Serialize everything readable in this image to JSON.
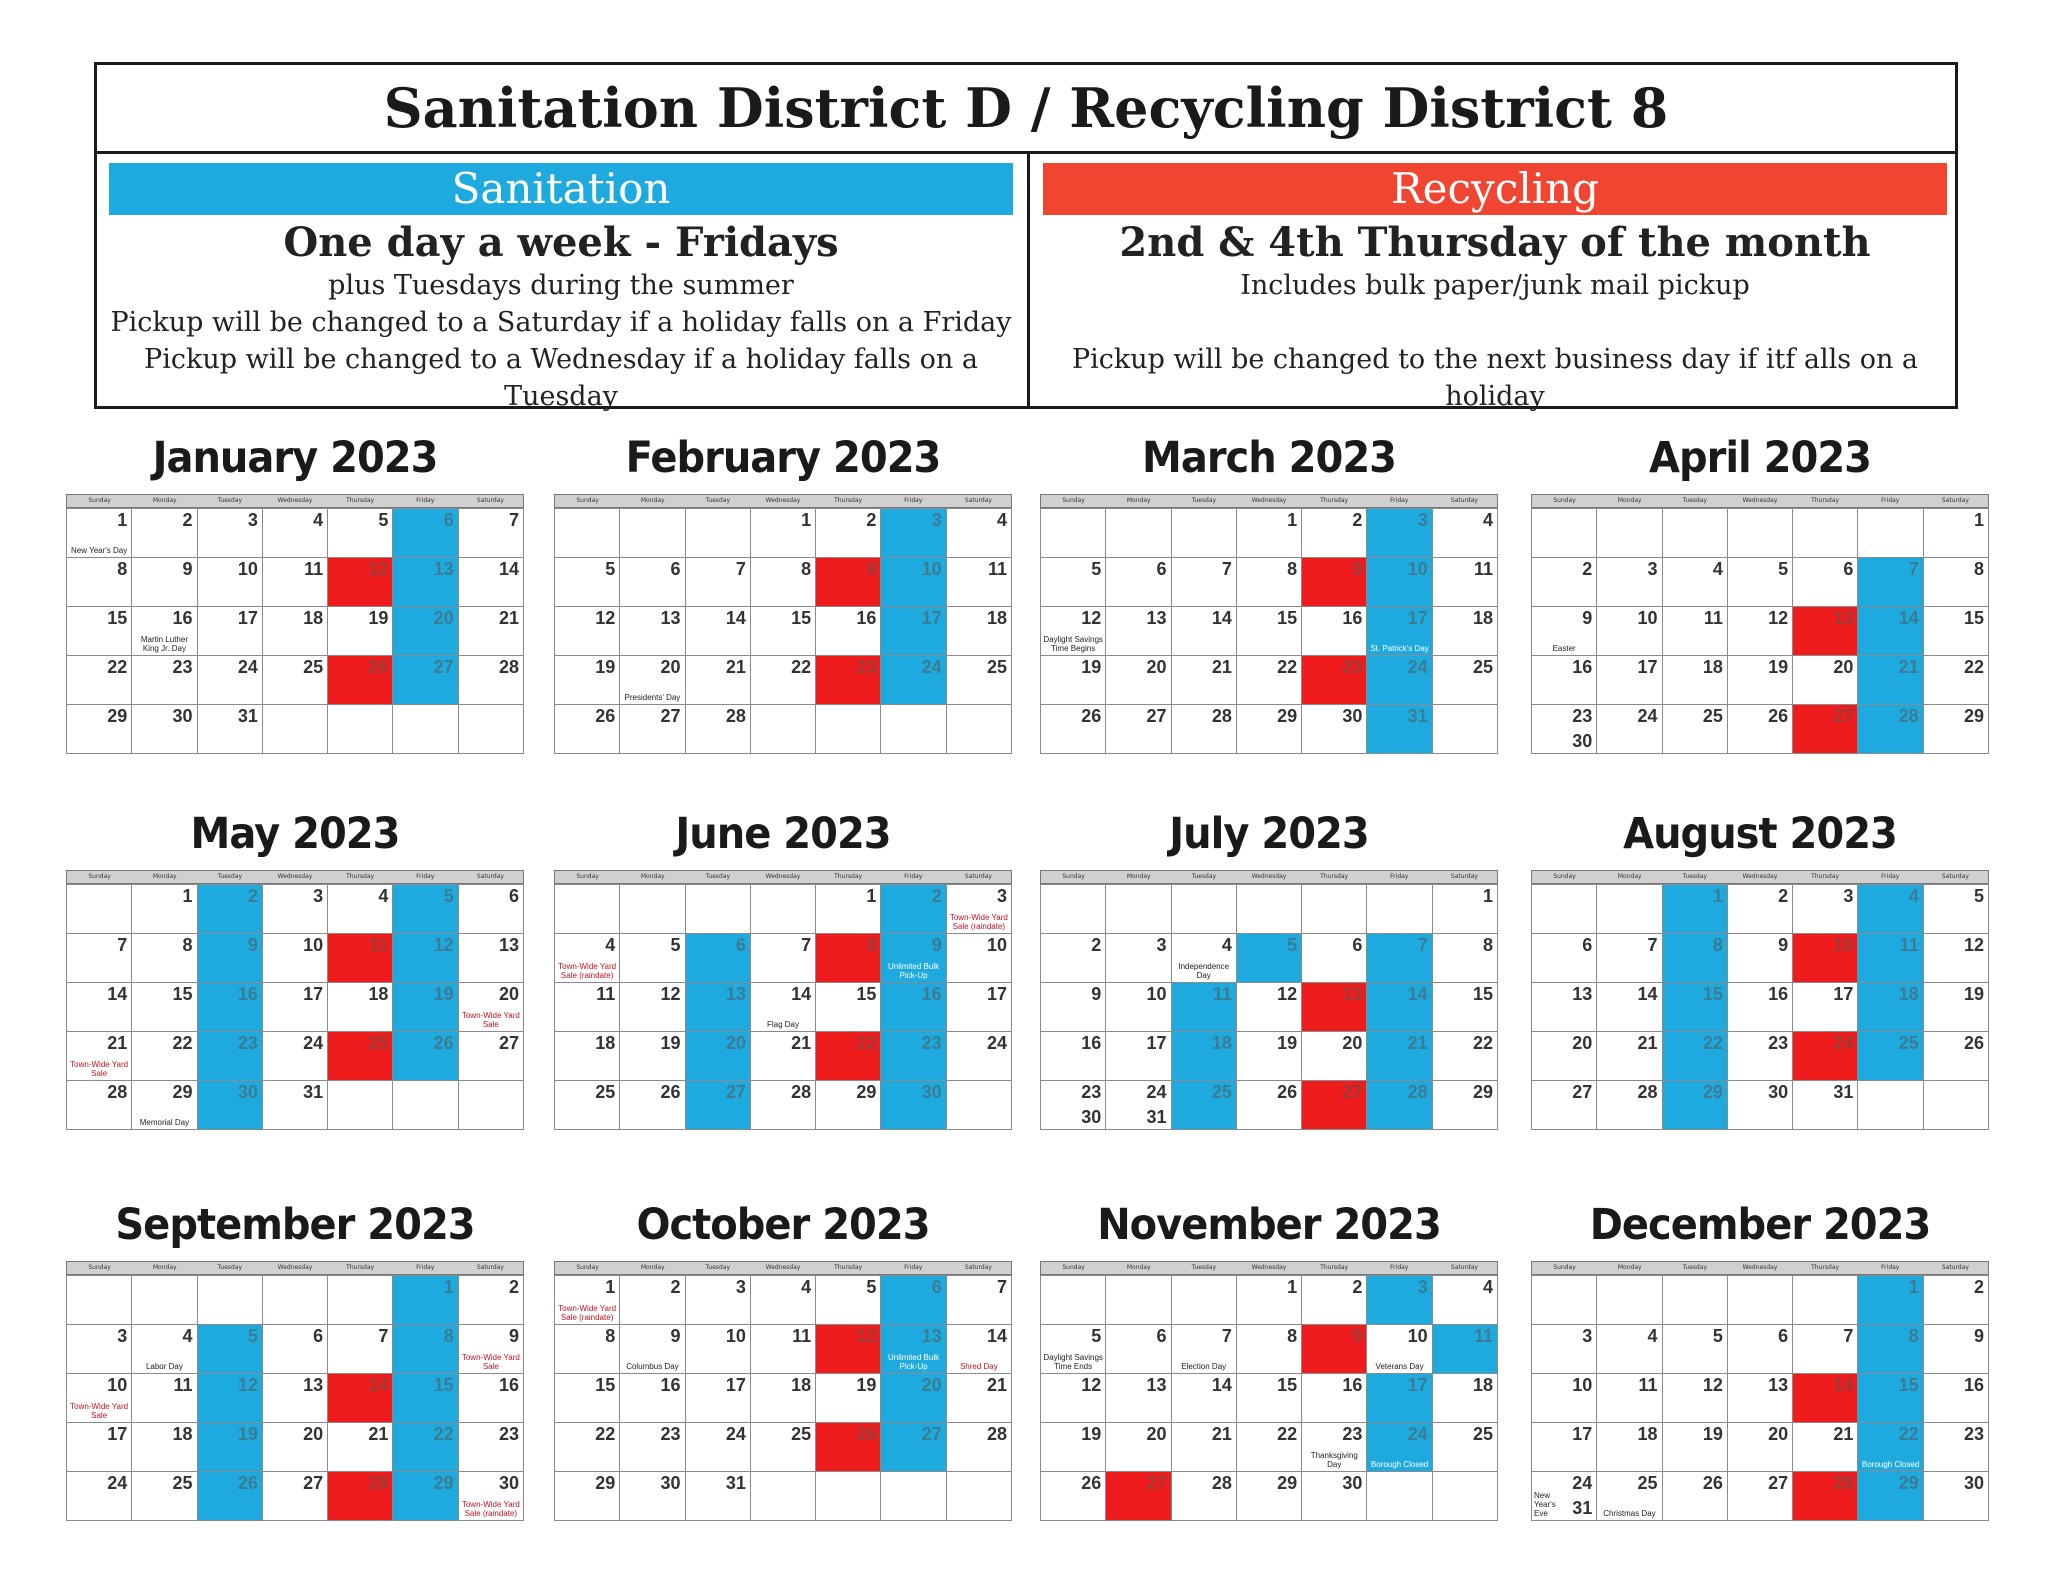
{
  "header": {
    "title": "Sanitation District D / Recycling District 8",
    "sanitation": {
      "label": "Sanitation",
      "headline": "One day a week - Fridays",
      "lines": [
        "plus Tuesdays during the summer",
        "Pickup will be changed to a Saturday if a holiday falls on a Friday",
        "Pickup will be changed to a Wednesday if a holiday falls on a Tuesday"
      ]
    },
    "recycling": {
      "label": "Recycling",
      "headline": "2nd & 4th Thursday of the month",
      "lines": [
        "Includes bulk paper/junk mail pickup",
        "",
        "Pickup will be changed to the next business day if itf alls on a holiday"
      ]
    }
  },
  "weekdays": [
    "Sunday",
    "Monday",
    "Tuesday",
    "Wednesday",
    "Thursday",
    "Friday",
    "Saturday"
  ],
  "colors": {
    "sanitation": "#1eaade",
    "recycling": "#ee1c1c",
    "holiday_note": "#c0141c"
  },
  "months": [
    {
      "title": "January 2023",
      "offset": 0,
      "days": 31,
      "wrap": null,
      "blue": [
        6,
        13,
        20,
        27
      ],
      "red": [
        12,
        26
      ],
      "notes": [
        {
          "day": 1,
          "text": "New Year's Day"
        },
        {
          "day": 16,
          "text": "Martin Luther King Jr. Day"
        }
      ]
    },
    {
      "title": "February 2023",
      "offset": 3,
      "days": 28,
      "wrap": null,
      "blue": [
        3,
        10,
        17,
        24
      ],
      "red": [
        9,
        23
      ],
      "notes": [
        {
          "day": 20,
          "text": "Presidents' Day"
        }
      ]
    },
    {
      "title": "March 2023",
      "offset": 3,
      "days": 31,
      "wrap": null,
      "blue": [
        3,
        10,
        17,
        24,
        31
      ],
      "red": [
        9,
        23
      ],
      "notes": [
        {
          "day": 12,
          "text": "Daylight Savings Time Begins"
        },
        {
          "day": 17,
          "text": "St. Patrick's Day"
        }
      ]
    },
    {
      "title": "April 2023",
      "offset": 6,
      "days": 30,
      "wrap": [
        23,
        30
      ],
      "blue": [
        7,
        14,
        21,
        28
      ],
      "red": [
        13,
        27
      ],
      "notes": [
        {
          "day": 9,
          "text": "Easter"
        }
      ]
    },
    {
      "title": "May 2023",
      "offset": 1,
      "days": 31,
      "wrap": null,
      "blue": [
        2,
        5,
        9,
        12,
        16,
        19,
        23,
        26,
        30
      ],
      "red": [
        11,
        25
      ],
      "notes": [
        {
          "day": 20,
          "text": "Town-Wide Yard Sale",
          "red": true
        },
        {
          "day": 21,
          "text": "Town-Wide Yard Sale",
          "red": true
        },
        {
          "day": 29,
          "text": "Memorial Day"
        }
      ]
    },
    {
      "title": "June 2023",
      "offset": 4,
      "days": 30,
      "wrap": null,
      "blue": [
        2,
        6,
        9,
        13,
        16,
        20,
        23,
        27,
        30
      ],
      "red": [
        8,
        22
      ],
      "notes": [
        {
          "day": 3,
          "text": "Town-Wide Yard Sale (raindate)",
          "red": true
        },
        {
          "day": 4,
          "text": "Town-Wide Yard Sale (raindate)",
          "red": true
        },
        {
          "day": 9,
          "text": "Unlimited Bulk Pick-Up"
        },
        {
          "day": 14,
          "text": "Flag Day"
        }
      ]
    },
    {
      "title": "July 2023",
      "offset": 6,
      "days": 31,
      "wrap": [
        23,
        30
      ],
      "wrap2": [
        24,
        31
      ],
      "blue": [
        5,
        7,
        11,
        14,
        18,
        21,
        25,
        28
      ],
      "red": [
        13,
        27
      ],
      "notes": [
        {
          "day": 4,
          "text": "Independence Day"
        }
      ]
    },
    {
      "title": "August 2023",
      "offset": 2,
      "days": 31,
      "wrap": null,
      "blue": [
        1,
        4,
        8,
        11,
        15,
        18,
        22,
        25,
        29
      ],
      "red": [
        10,
        24
      ],
      "notes": []
    },
    {
      "title": "September 2023",
      "offset": 5,
      "days": 30,
      "wrap": null,
      "blue": [
        1,
        5,
        8,
        12,
        15,
        19,
        22,
        26,
        29
      ],
      "red": [
        14,
        28
      ],
      "notes": [
        {
          "day": 4,
          "text": "Labor Day"
        },
        {
          "day": 9,
          "text": "Town-Wide Yard Sale",
          "red": true
        },
        {
          "day": 10,
          "text": "Town-Wide Yard Sale",
          "red": true
        },
        {
          "day": 30,
          "text": "Town-Wide Yard Sale (raindate)",
          "red": true
        }
      ]
    },
    {
      "title": "October 2023",
      "offset": 0,
      "days": 31,
      "wrap": null,
      "blue": [
        6,
        13,
        20,
        27
      ],
      "red": [
        12,
        26
      ],
      "notes": [
        {
          "day": 1,
          "text": "Town-Wide Yard Sale (raindate)",
          "red": true
        },
        {
          "day": 9,
          "text": "Columbus Day"
        },
        {
          "day": 13,
          "text": "Unlimited Bulk Pick-Up"
        },
        {
          "day": 14,
          "text": "Shred Day",
          "red": true
        }
      ]
    },
    {
      "title": "November 2023",
      "offset": 3,
      "days": 30,
      "wrap": null,
      "blue": [
        3,
        11,
        17,
        24
      ],
      "red": [
        9,
        27
      ],
      "notes": [
        {
          "day": 5,
          "text": "Daylight Savings Time Ends"
        },
        {
          "day": 7,
          "text": "Election Day"
        },
        {
          "day": 10,
          "text": "Veterans Day"
        },
        {
          "day": 23,
          "text": "Thanksgiving Day"
        },
        {
          "day": 24,
          "text": "Borough Closed"
        }
      ]
    },
    {
      "title": "December 2023",
      "offset": 5,
      "days": 31,
      "wrap": [
        24,
        31
      ],
      "blue": [
        1,
        8,
        15,
        22,
        29
      ],
      "red": [
        14,
        28
      ],
      "notes": [
        {
          "day": 22,
          "text": "Borough Closed"
        },
        {
          "day": 25,
          "text": "Christmas Day"
        },
        {
          "day": 31,
          "text": "New Year's Eve"
        }
      ]
    }
  ]
}
